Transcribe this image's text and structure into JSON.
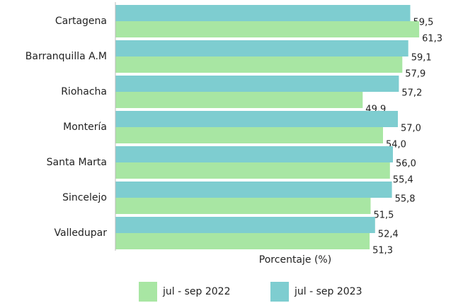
{
  "chart_data": {
    "type": "hbar",
    "categories": [
      "Cartagena",
      "Barranquilla A.M",
      "Riohacha",
      "Montería",
      "Santa Marta",
      "Sincelejo",
      "Valledupar"
    ],
    "series": [
      {
        "name": "jul - sep 2022",
        "color": "#a8e6a3",
        "values": [
          61.3,
          57.9,
          49.9,
          54.0,
          55.4,
          51.5,
          51.3
        ],
        "value_labels": [
          "61,3",
          "57,9",
          "49,9",
          "54,0",
          "55,4",
          "51,5",
          "51,3"
        ]
      },
      {
        "name": "jul - sep 2023",
        "color": "#7ecdd0",
        "values": [
          59.5,
          59.1,
          57.2,
          57.0,
          56.0,
          55.8,
          52.4
        ],
        "value_labels": [
          "59,5",
          "59,1",
          "57,2",
          "57,0",
          "56,0",
          "55,8",
          "52,4"
        ]
      }
    ],
    "xlabel": "Porcentaje (%)",
    "xlim": [
      0,
      65
    ]
  }
}
